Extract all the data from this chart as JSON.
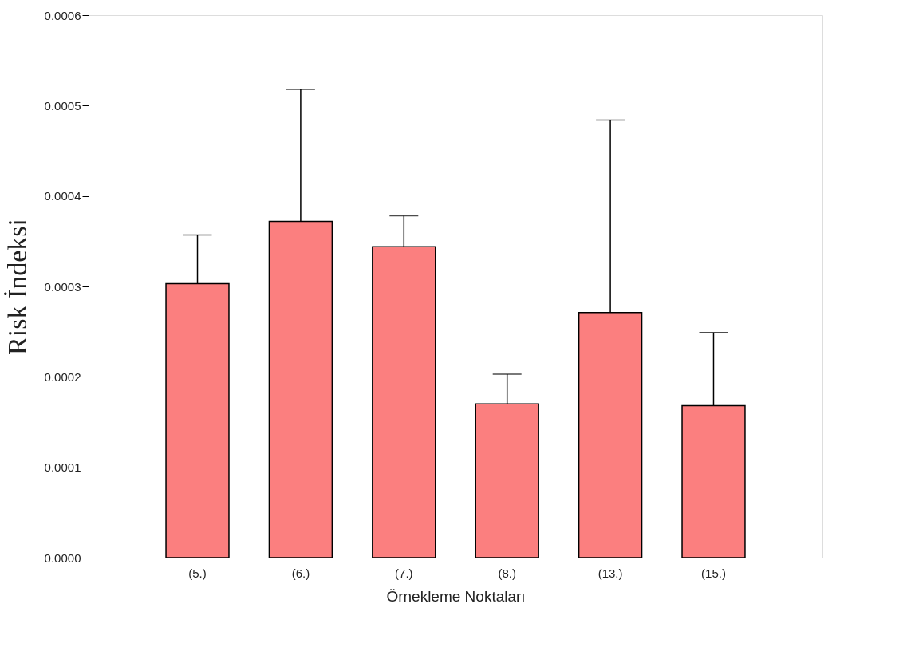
{
  "chart_data": {
    "type": "bar",
    "xlabel": "Örnekleme Noktaları",
    "ylabel": "Risk İndeksi",
    "categories": [
      "(5.)",
      "(6.)",
      "(7.)",
      "(8.)",
      "(13.)",
      "(15.)"
    ],
    "values": [
      0.000303,
      0.000372,
      0.000344,
      0.00017,
      0.000271,
      0.000168
    ],
    "errors": [
      [
        0.000303,
        0.000357
      ],
      [
        0.000372,
        0.000518
      ],
      [
        0.000344,
        0.000378
      ],
      [
        0.00017,
        0.000203
      ],
      [
        0.000271,
        0.000484
      ],
      [
        0.000168,
        0.000249
      ]
    ],
    "color": "#fb7f7f",
    "ylim": [
      0,
      0.0006
    ],
    "yticks": [
      {
        "value": 0,
        "label": "0.0000"
      },
      {
        "value": 0.0001,
        "label": "0.0001"
      },
      {
        "value": 0.0002,
        "label": "0.0002"
      },
      {
        "value": 0.0003,
        "label": "0.0003"
      },
      {
        "value": 0.0004,
        "label": "0.0004"
      },
      {
        "value": 0.0005,
        "label": "0.0005"
      },
      {
        "value": 0.0006,
        "label": "0.0006"
      }
    ],
    "grid": false
  }
}
